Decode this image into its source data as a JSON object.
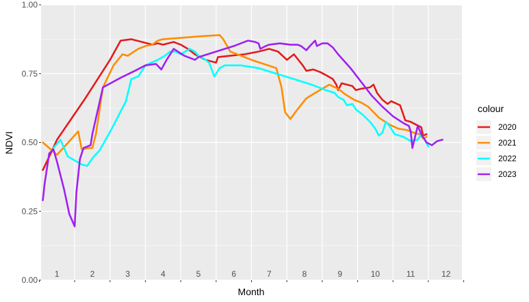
{
  "chart_data": {
    "type": "line",
    "title": "",
    "xlabel": "Month",
    "ylabel": "NDVI",
    "xlim": [
      0.55,
      12.45
    ],
    "ylim": [
      0,
      1
    ],
    "x_ticks": [
      "1",
      "2",
      "3",
      "4",
      "5",
      "6",
      "7",
      "8",
      "9",
      "10",
      "11",
      "12"
    ],
    "y_ticks": [
      "0.00",
      "0.25",
      "0.50",
      "0.75",
      "1.00"
    ],
    "grid": true,
    "legend": {
      "title": "colour",
      "position": "right"
    },
    "series": [
      {
        "name": "2020",
        "color": "#e41a1c",
        "points": [
          [
            0.6,
            0.4
          ],
          [
            0.75,
            0.44
          ],
          [
            1.0,
            0.51
          ],
          [
            1.8,
            0.66
          ],
          [
            2.5,
            0.8
          ],
          [
            2.8,
            0.87
          ],
          [
            3.1,
            0.875
          ],
          [
            3.4,
            0.865
          ],
          [
            3.7,
            0.855
          ],
          [
            3.85,
            0.86
          ],
          [
            4.0,
            0.855
          ],
          [
            4.3,
            0.865
          ],
          [
            4.5,
            0.855
          ],
          [
            4.7,
            0.84
          ],
          [
            4.9,
            0.82
          ],
          [
            5.2,
            0.8
          ],
          [
            5.5,
            0.79
          ],
          [
            5.55,
            0.81
          ],
          [
            5.9,
            0.815
          ],
          [
            6.3,
            0.82
          ],
          [
            6.7,
            0.83
          ],
          [
            7.0,
            0.84
          ],
          [
            7.25,
            0.83
          ],
          [
            7.5,
            0.8
          ],
          [
            7.7,
            0.82
          ],
          [
            7.95,
            0.78
          ],
          [
            8.05,
            0.76
          ],
          [
            8.25,
            0.765
          ],
          [
            8.45,
            0.755
          ],
          [
            8.6,
            0.745
          ],
          [
            8.8,
            0.73
          ],
          [
            8.9,
            0.71
          ],
          [
            8.95,
            0.69
          ],
          [
            9.05,
            0.715
          ],
          [
            9.2,
            0.71
          ],
          [
            9.35,
            0.705
          ],
          [
            9.45,
            0.69
          ],
          [
            9.6,
            0.695
          ],
          [
            9.85,
            0.7
          ],
          [
            9.95,
            0.71
          ],
          [
            10.05,
            0.68
          ],
          [
            10.2,
            0.655
          ],
          [
            10.35,
            0.64
          ],
          [
            10.45,
            0.65
          ],
          [
            10.7,
            0.635
          ],
          [
            10.85,
            0.58
          ],
          [
            11.0,
            0.575
          ],
          [
            11.15,
            0.565
          ],
          [
            11.3,
            0.555
          ],
          [
            11.35,
            0.525
          ],
          [
            11.45,
            0.53
          ]
        ]
      },
      {
        "name": "2021",
        "color": "#ff8c00",
        "points": [
          [
            0.6,
            0.5
          ],
          [
            1.0,
            0.455
          ],
          [
            1.6,
            0.54
          ],
          [
            1.7,
            0.475
          ],
          [
            1.9,
            0.48
          ],
          [
            2.0,
            0.48
          ],
          [
            2.1,
            0.53
          ],
          [
            2.3,
            0.7
          ],
          [
            2.6,
            0.78
          ],
          [
            2.85,
            0.82
          ],
          [
            3.0,
            0.815
          ],
          [
            3.3,
            0.84
          ],
          [
            3.5,
            0.85
          ],
          [
            3.7,
            0.855
          ],
          [
            3.85,
            0.87
          ],
          [
            4.0,
            0.875
          ],
          [
            4.5,
            0.88
          ],
          [
            5.0,
            0.885
          ],
          [
            5.6,
            0.89
          ],
          [
            5.7,
            0.875
          ],
          [
            5.9,
            0.83
          ],
          [
            6.5,
            0.8
          ],
          [
            7.2,
            0.77
          ],
          [
            7.35,
            0.7
          ],
          [
            7.45,
            0.61
          ],
          [
            7.6,
            0.585
          ],
          [
            7.8,
            0.62
          ],
          [
            8.05,
            0.66
          ],
          [
            8.3,
            0.68
          ],
          [
            8.5,
            0.695
          ],
          [
            8.7,
            0.71
          ],
          [
            8.95,
            0.695
          ],
          [
            9.15,
            0.675
          ],
          [
            9.4,
            0.655
          ],
          [
            9.6,
            0.645
          ],
          [
            9.8,
            0.63
          ],
          [
            10.1,
            0.59
          ],
          [
            10.4,
            0.565
          ],
          [
            10.65,
            0.55
          ],
          [
            10.9,
            0.545
          ],
          [
            11.1,
            0.535
          ],
          [
            11.25,
            0.53
          ],
          [
            11.35,
            0.515
          ],
          [
            11.45,
            0.52
          ]
        ]
      },
      {
        "name": "2022",
        "color": "#00ffff",
        "points": [
          [
            0.9,
            0.48
          ],
          [
            1.1,
            0.51
          ],
          [
            1.3,
            0.45
          ],
          [
            1.7,
            0.42
          ],
          [
            1.85,
            0.415
          ],
          [
            2.05,
            0.45
          ],
          [
            2.2,
            0.47
          ],
          [
            2.55,
            0.55
          ],
          [
            2.95,
            0.65
          ],
          [
            3.1,
            0.73
          ],
          [
            3.3,
            0.74
          ],
          [
            3.5,
            0.78
          ],
          [
            3.85,
            0.8
          ],
          [
            4.05,
            0.815
          ],
          [
            4.2,
            0.83
          ],
          [
            4.35,
            0.83
          ],
          [
            4.5,
            0.82
          ],
          [
            4.75,
            0.84
          ],
          [
            4.9,
            0.83
          ],
          [
            5.0,
            0.815
          ],
          [
            5.15,
            0.805
          ],
          [
            5.3,
            0.79
          ],
          [
            5.45,
            0.74
          ],
          [
            5.6,
            0.77
          ],
          [
            5.75,
            0.78
          ],
          [
            6.2,
            0.78
          ],
          [
            6.7,
            0.77
          ],
          [
            7.2,
            0.75
          ],
          [
            7.7,
            0.73
          ],
          [
            8.2,
            0.71
          ],
          [
            8.6,
            0.69
          ],
          [
            8.85,
            0.68
          ],
          [
            8.95,
            0.665
          ],
          [
            9.1,
            0.655
          ],
          [
            9.2,
            0.635
          ],
          [
            9.35,
            0.64
          ],
          [
            9.45,
            0.62
          ],
          [
            9.65,
            0.6
          ],
          [
            9.85,
            0.575
          ],
          [
            10.0,
            0.55
          ],
          [
            10.1,
            0.525
          ],
          [
            10.2,
            0.535
          ],
          [
            10.3,
            0.575
          ],
          [
            10.4,
            0.56
          ],
          [
            10.55,
            0.53
          ],
          [
            10.8,
            0.52
          ],
          [
            11.0,
            0.505
          ],
          [
            11.2,
            0.51
          ],
          [
            11.3,
            0.53
          ],
          [
            11.4,
            0.51
          ],
          [
            11.5,
            0.485
          ]
        ]
      },
      {
        "name": "2023",
        "color": "#a020f0",
        "points": [
          [
            0.6,
            0.29
          ],
          [
            0.65,
            0.35
          ],
          [
            0.78,
            0.46
          ],
          [
            0.9,
            0.475
          ],
          [
            1.0,
            0.43
          ],
          [
            1.2,
            0.33
          ],
          [
            1.35,
            0.24
          ],
          [
            1.5,
            0.195
          ],
          [
            1.55,
            0.32
          ],
          [
            1.65,
            0.44
          ],
          [
            1.75,
            0.48
          ],
          [
            1.95,
            0.49
          ],
          [
            2.0,
            0.53
          ],
          [
            2.3,
            0.7
          ],
          [
            2.8,
            0.735
          ],
          [
            3.2,
            0.76
          ],
          [
            3.5,
            0.78
          ],
          [
            3.8,
            0.785
          ],
          [
            3.95,
            0.765
          ],
          [
            4.1,
            0.8
          ],
          [
            4.3,
            0.84
          ],
          [
            4.6,
            0.815
          ],
          [
            4.9,
            0.8
          ],
          [
            5.0,
            0.81
          ],
          [
            5.5,
            0.83
          ],
          [
            6.0,
            0.85
          ],
          [
            6.4,
            0.87
          ],
          [
            6.6,
            0.865
          ],
          [
            6.7,
            0.86
          ],
          [
            6.75,
            0.84
          ],
          [
            6.9,
            0.85
          ],
          [
            7.0,
            0.855
          ],
          [
            7.3,
            0.86
          ],
          [
            7.6,
            0.855
          ],
          [
            7.8,
            0.855
          ],
          [
            7.9,
            0.85
          ],
          [
            8.05,
            0.835
          ],
          [
            8.15,
            0.85
          ],
          [
            8.3,
            0.87
          ],
          [
            8.35,
            0.85
          ],
          [
            8.5,
            0.86
          ],
          [
            8.65,
            0.86
          ],
          [
            8.8,
            0.845
          ],
          [
            8.95,
            0.82
          ],
          [
            9.3,
            0.77
          ],
          [
            9.6,
            0.72
          ],
          [
            9.9,
            0.67
          ],
          [
            10.2,
            0.63
          ],
          [
            10.5,
            0.595
          ],
          [
            10.8,
            0.57
          ],
          [
            10.95,
            0.56
          ],
          [
            11.0,
            0.54
          ],
          [
            11.05,
            0.48
          ],
          [
            11.2,
            0.56
          ],
          [
            11.3,
            0.53
          ],
          [
            11.45,
            0.5
          ],
          [
            11.6,
            0.49
          ],
          [
            11.75,
            0.505
          ],
          [
            11.9,
            0.51
          ]
        ]
      }
    ]
  }
}
